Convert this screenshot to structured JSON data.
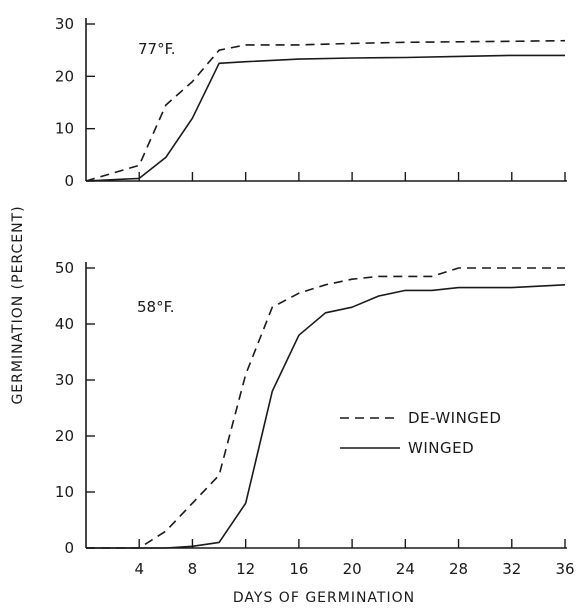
{
  "chart_data": {
    "type": "line",
    "ylabel": "GERMINATION (PERCENT)",
    "xlabel": "DAYS OF GERMINATION",
    "legend": {
      "placement": "inside-right",
      "entries": [
        "DE-WINGED",
        "WINGED"
      ]
    },
    "panels": [
      {
        "label": "77°F.",
        "xlim": [
          0,
          36
        ],
        "ylim": [
          0,
          30
        ],
        "yticks": [
          "0",
          "10",
          "20",
          "30"
        ],
        "xticks": [
          0,
          4,
          8,
          12,
          16,
          20,
          24,
          28,
          32,
          36
        ],
        "xtick_labels_shown": false,
        "series": [
          {
            "name": "DE-WINGED",
            "style": "dashed",
            "x": [
              0,
              4,
              6,
              8,
              10,
              12,
              16,
              20,
              24,
              28,
              32,
              36
            ],
            "y": [
              0,
              3,
              14.5,
              19,
              25,
              26,
              26,
              26.3,
              26.5,
              26.6,
              26.7,
              26.8
            ]
          },
          {
            "name": "WINGED",
            "style": "solid",
            "x": [
              0,
              4,
              6,
              8,
              10,
              12,
              16,
              20,
              24,
              28,
              32,
              36
            ],
            "y": [
              0,
              0.5,
              4.5,
              12,
              22.5,
              22.8,
              23.3,
              23.5,
              23.6,
              23.8,
              24,
              24
            ]
          }
        ]
      },
      {
        "label": "58°F.",
        "xlim": [
          0,
          36
        ],
        "ylim": [
          0,
          50
        ],
        "yticks": [
          "0",
          "10",
          "20",
          "30",
          "40",
          "50"
        ],
        "xticks": [
          0,
          4,
          8,
          12,
          16,
          20,
          24,
          28,
          32,
          36
        ],
        "xtick_labels": [
          "",
          "4",
          "8",
          "12",
          "16",
          "20",
          "24",
          "28",
          "32",
          "36"
        ],
        "series": [
          {
            "name": "DE-WINGED",
            "style": "dashed",
            "x": [
              0,
              4,
              6,
              8,
              10,
              12,
              14,
              16,
              18,
              20,
              22,
              24,
              26,
              28,
              32,
              36
            ],
            "y": [
              0,
              0,
              3,
              8,
              13,
              31,
              43,
              45.5,
              47,
              48,
              48.5,
              48.5,
              48.5,
              50,
              50,
              50
            ]
          },
          {
            "name": "WINGED",
            "style": "solid",
            "x": [
              0,
              4,
              6,
              8,
              10,
              12,
              14,
              16,
              18,
              20,
              22,
              24,
              26,
              28,
              32,
              36
            ],
            "y": [
              0,
              0,
              0,
              0.3,
              1,
              8,
              28,
              38,
              42,
              43,
              45,
              46,
              46,
              46.5,
              46.5,
              47
            ]
          }
        ]
      }
    ]
  }
}
